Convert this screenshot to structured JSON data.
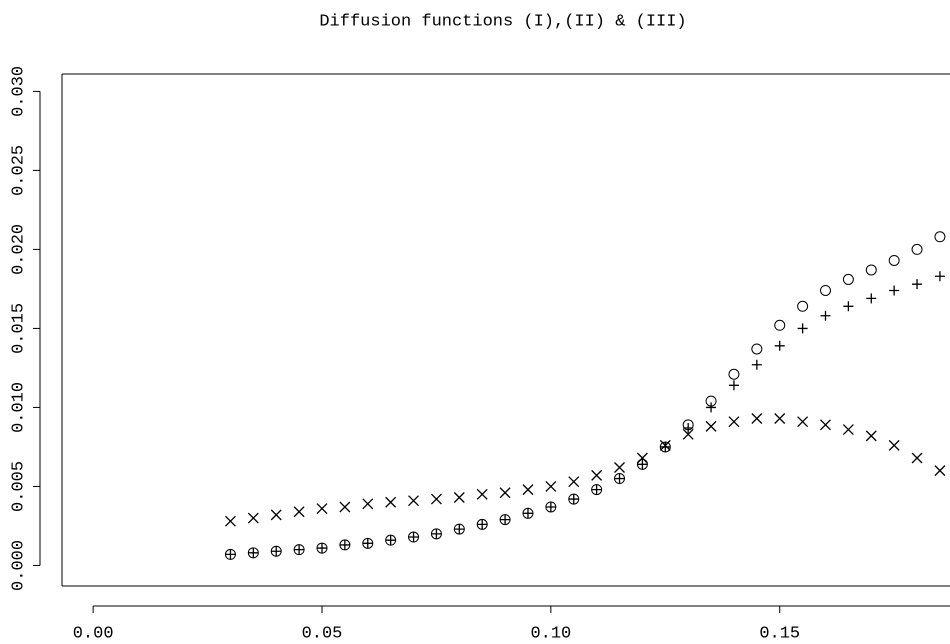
{
  "chart_data": {
    "type": "scatter",
    "title": "Diffusion functions (I),(II) & (III)",
    "x": [
      0.03,
      0.035,
      0.04,
      0.045,
      0.05,
      0.055,
      0.06,
      0.065,
      0.07,
      0.075,
      0.08,
      0.085,
      0.09,
      0.095,
      0.1,
      0.105,
      0.11,
      0.115,
      0.12,
      0.125,
      0.13,
      0.135,
      0.14,
      0.145,
      0.15,
      0.155,
      0.16,
      0.165,
      0.17,
      0.175,
      0.18,
      0.185
    ],
    "series": [
      {
        "marker": "circle",
        "color": "#000000",
        "values": [
          0.0007,
          0.0008,
          0.0009,
          0.001,
          0.0011,
          0.0013,
          0.0014,
          0.0016,
          0.0018,
          0.002,
          0.0023,
          0.0026,
          0.0029,
          0.0033,
          0.0037,
          0.0042,
          0.0048,
          0.0055,
          0.0064,
          0.0075,
          0.0089,
          0.0104,
          0.0121,
          0.0137,
          0.0152,
          0.0164,
          0.0174,
          0.0181,
          0.0187,
          0.0193,
          0.02,
          0.0208
        ]
      },
      {
        "marker": "plus",
        "color": "#000000",
        "values": [
          0.0007,
          0.0008,
          0.0009,
          0.001,
          0.0011,
          0.0013,
          0.0014,
          0.0016,
          0.0018,
          0.002,
          0.0023,
          0.0026,
          0.0029,
          0.0033,
          0.0037,
          0.0042,
          0.0048,
          0.0055,
          0.0064,
          0.0075,
          0.0087,
          0.01,
          0.0114,
          0.0127,
          0.0139,
          0.015,
          0.0158,
          0.0164,
          0.0169,
          0.0174,
          0.0178,
          0.0183
        ]
      },
      {
        "marker": "cross",
        "color": "#000000",
        "values": [
          0.0028,
          0.003,
          0.0032,
          0.0034,
          0.0036,
          0.0037,
          0.0039,
          0.004,
          0.0041,
          0.0042,
          0.0043,
          0.0045,
          0.0046,
          0.0048,
          0.005,
          0.0053,
          0.0057,
          0.0062,
          0.0068,
          0.0076,
          0.0083,
          0.0088,
          0.0091,
          0.0093,
          0.0093,
          0.0091,
          0.0089,
          0.0086,
          0.0082,
          0.0076,
          0.0068,
          0.006
        ]
      }
    ],
    "xlim": [
      -0.0068,
      0.1872
    ],
    "ylim": [
      -0.0013,
      0.0311
    ],
    "xticks": [
      {
        "value": 0,
        "label": "0.00"
      },
      0.05,
      {
        "value": 0.1,
        "label": "0.10"
      },
      {
        "value": 0.15,
        "label": "0.15"
      }
    ],
    "yticks": [
      {
        "value": 0,
        "label": "0.000"
      },
      0.005,
      {
        "value": 0.01,
        "label": "0.010"
      },
      0.015,
      {
        "value": 0.02,
        "label": "0.020"
      },
      0.025,
      {
        "value": 0.03,
        "label": "0.030"
      }
    ]
  }
}
